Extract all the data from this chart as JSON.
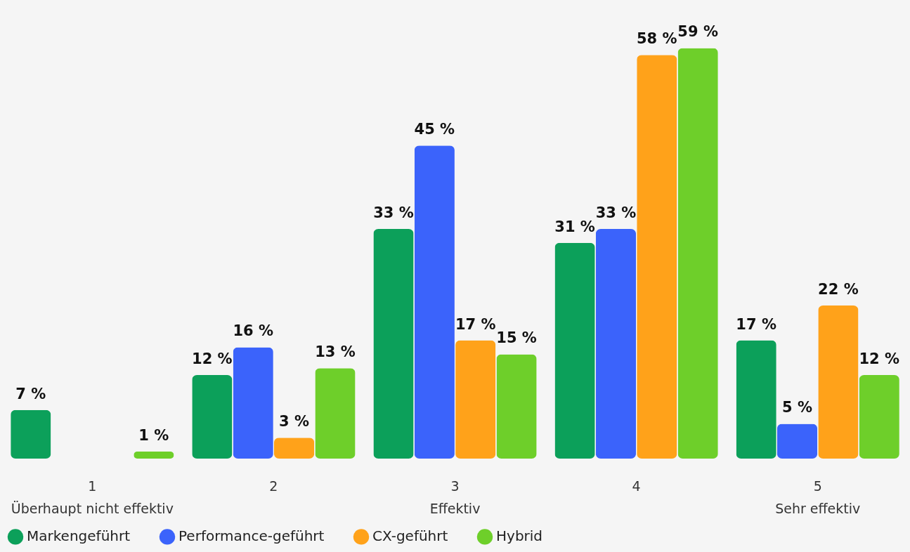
{
  "chart_data": {
    "type": "bar",
    "categories": [
      "1\nÜberhaupt nicht effektiv",
      "2",
      "3\nEffektiv",
      "4",
      "5\nSehr effektiv"
    ],
    "series": [
      {
        "name": "Markengeführt",
        "color": "#0ca05a",
        "values": [
          7,
          12,
          33,
          31,
          17
        ],
        "value_labels": [
          "7 %",
          "12 %",
          "33 %",
          "31 %",
          "17 %"
        ]
      },
      {
        "name": "Performance-geführt",
        "color": "#3b63fb",
        "values": [
          null,
          16,
          45,
          33,
          5
        ],
        "value_labels": [
          null,
          "16 %",
          "45 %",
          "33 %",
          "5 %"
        ]
      },
      {
        "name": "CX-geführt",
        "color": "#ffa21a",
        "values": [
          null,
          3,
          17,
          58,
          22
        ],
        "value_labels": [
          null,
          "3 %",
          "17 %",
          "58 %",
          "22 %"
        ]
      },
      {
        "name": "Hybrid",
        "color": "#6ecf2a",
        "values": [
          1,
          13,
          15,
          59,
          12
        ],
        "value_labels": [
          "1 %",
          "13 %",
          "15 %",
          "59 %",
          "12 %"
        ]
      }
    ],
    "legend": "bottom"
  }
}
